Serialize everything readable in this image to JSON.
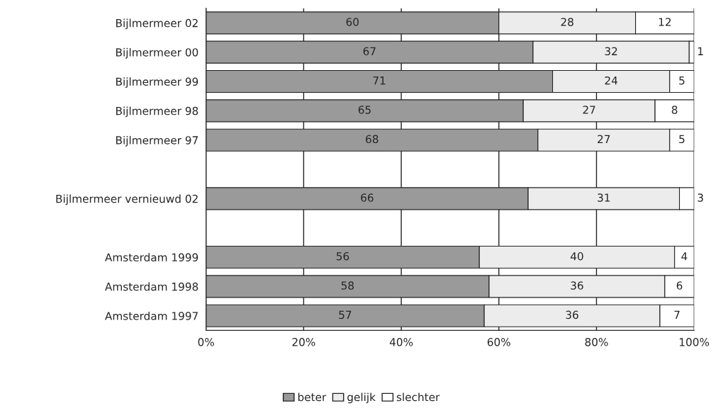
{
  "chart_data": {
    "type": "bar",
    "orientation": "horizontal",
    "stacked": true,
    "categories": [
      "Bijlmermeer 02",
      "Bijlmermeer 00",
      "Bijlmermeer 99",
      "Bijlmermeer 98",
      "Bijlmermeer 97",
      null,
      "Bijlmermeer vernieuwd 02",
      null,
      "Amsterdam 1999",
      "Amsterdam 1998",
      "Amsterdam 1997"
    ],
    "series": [
      {
        "name": "beter",
        "color": "#9a9a9a",
        "values": [
          60,
          67,
          71,
          65,
          68,
          null,
          66,
          null,
          56,
          58,
          57
        ]
      },
      {
        "name": "gelijk",
        "color": "#ececec",
        "values": [
          28,
          32,
          24,
          27,
          27,
          null,
          31,
          null,
          40,
          36,
          36
        ]
      },
      {
        "name": "slechter",
        "color": "#ffffff",
        "values": [
          12,
          1,
          5,
          8,
          5,
          null,
          3,
          null,
          4,
          6,
          7
        ]
      }
    ],
    "xlim": [
      0,
      100
    ],
    "xticks": [
      {
        "value": 0,
        "label": "0%"
      },
      {
        "value": 20,
        "label": "20%"
      },
      {
        "value": 40,
        "label": "40%"
      },
      {
        "value": 60,
        "label": "60%"
      },
      {
        "value": 80,
        "label": "80%"
      },
      {
        "value": 100,
        "label": "100%"
      }
    ],
    "grid": "x",
    "legend": "bottom",
    "data_labels": true
  }
}
